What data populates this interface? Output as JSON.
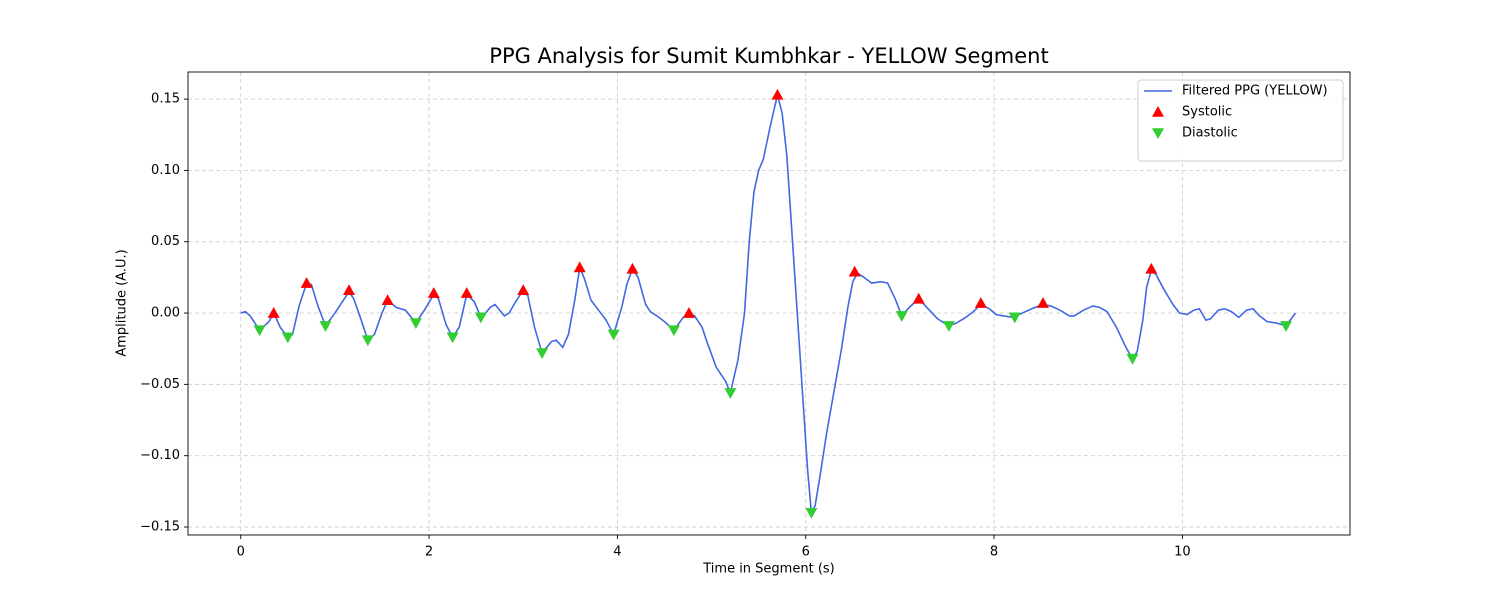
{
  "chart_data": {
    "type": "line",
    "title": "PPG Analysis for Sumit Kumbhkar - YELLOW Segment",
    "xlabel": "Time in Segment (s)",
    "ylabel": "Amplitude (A.U.)",
    "xlim": [
      -0.56,
      11.78
    ],
    "ylim": [
      -0.1556,
      0.169
    ],
    "xticks": [
      0,
      2,
      4,
      6,
      8,
      10
    ],
    "yticks": [
      {
        "value": -0.15,
        "label": "−0.15"
      },
      {
        "value": -0.1,
        "label": "−0.10"
      },
      {
        "value": -0.05,
        "label": "−0.05"
      },
      {
        "value": 0,
        "label": "0.00"
      },
      {
        "value": 0.05,
        "label": "0.05"
      },
      {
        "value": 0.1,
        "label": "0.10"
      },
      {
        "value": 0.15,
        "label": "0.15"
      }
    ],
    "grid": true,
    "legend": "upper right",
    "series": [
      {
        "name": "Filtered PPG (YELLOW)",
        "kind": "line",
        "color": "#4169e1",
        "x": [
          0,
          0.05,
          0.1,
          0.2,
          0.3,
          0.35,
          0.42,
          0.5,
          0.55,
          0.62,
          0.7,
          0.75,
          0.82,
          0.9,
          1.0,
          1.1,
          1.15,
          1.2,
          1.28,
          1.35,
          1.42,
          1.5,
          1.56,
          1.65,
          1.75,
          1.86,
          1.95,
          2.05,
          2.1,
          2.18,
          2.25,
          2.32,
          2.4,
          2.48,
          2.55,
          2.6,
          2.65,
          2.7,
          2.8,
          2.85,
          2.92,
          3.0,
          3.05,
          3.12,
          3.2,
          3.3,
          3.35,
          3.42,
          3.48,
          3.55,
          3.6,
          3.65,
          3.72,
          3.8,
          3.88,
          3.96,
          4.05,
          4.1,
          4.16,
          4.22,
          4.3,
          4.35,
          4.42,
          4.5,
          4.6,
          4.7,
          4.76,
          4.82,
          4.9,
          4.95,
          5.05,
          5.15,
          5.2,
          5.28,
          5.35,
          5.4,
          5.45,
          5.5,
          5.55,
          5.62,
          5.7,
          5.75,
          5.8,
          5.85,
          5.92,
          5.97,
          6.02,
          6.06,
          6.1,
          6.15,
          6.22,
          6.3,
          6.38,
          6.45,
          6.5,
          6.55,
          6.62,
          6.7,
          6.8,
          6.87,
          6.95,
          7.02,
          7.1,
          7.2,
          7.3,
          7.4,
          7.52,
          7.6,
          7.7,
          7.78,
          7.86,
          7.95,
          8.02,
          8.1,
          8.2,
          8.3,
          8.4,
          8.52,
          8.6,
          8.7,
          8.8,
          8.85,
          8.95,
          9.05,
          9.12,
          9.2,
          9.3,
          9.4,
          9.47,
          9.52,
          9.58,
          9.62,
          9.67,
          9.72,
          9.8,
          9.9,
          9.97,
          10.05,
          10.12,
          10.18,
          10.25,
          10.3,
          10.38,
          10.45,
          10.52,
          10.6,
          10.68,
          10.75,
          10.82,
          10.9,
          11.0,
          11.1,
          11.2
        ],
        "values": [
          0,
          0.001,
          -0.002,
          -0.012,
          -0.006,
          0.0,
          -0.01,
          -0.017,
          -0.015,
          0.005,
          0.021,
          0.02,
          0.005,
          -0.009,
          0.0,
          0.01,
          0.015,
          0.01,
          -0.005,
          -0.019,
          -0.015,
          0.0,
          0.009,
          0.004,
          0.002,
          -0.007,
          0.002,
          0.013,
          0.01,
          -0.008,
          -0.017,
          -0.01,
          0.013,
          0.008,
          -0.003,
          0.0,
          0.004,
          0.006,
          -0.002,
          0.0,
          0.008,
          0.016,
          0.012,
          -0.01,
          -0.028,
          -0.02,
          -0.019,
          -0.024,
          -0.015,
          0.01,
          0.032,
          0.024,
          0.009,
          0.002,
          -0.005,
          -0.015,
          0.005,
          0.02,
          0.031,
          0.025,
          0.006,
          0.001,
          -0.002,
          -0.006,
          -0.012,
          -0.003,
          0.0,
          -0.002,
          -0.01,
          -0.02,
          -0.038,
          -0.048,
          -0.056,
          -0.033,
          0.0,
          0.05,
          0.085,
          0.1,
          0.108,
          0.13,
          0.153,
          0.14,
          0.11,
          0.06,
          -0.01,
          -0.06,
          -0.11,
          -0.14,
          -0.135,
          -0.115,
          -0.085,
          -0.055,
          -0.025,
          0.005,
          0.022,
          0.028,
          0.025,
          0.021,
          0.022,
          0.021,
          0.01,
          -0.002,
          0.004,
          0.01,
          0.003,
          -0.004,
          -0.009,
          -0.007,
          -0.003,
          0.001,
          0.006,
          0.003,
          -0.001,
          -0.002,
          -0.003,
          0.0,
          0.003,
          0.006,
          0.005,
          0.002,
          -0.002,
          -0.002,
          0.002,
          0.005,
          0.004,
          0.001,
          -0.01,
          -0.024,
          -0.032,
          -0.027,
          -0.005,
          0.018,
          0.03,
          0.027,
          0.017,
          0.006,
          0.0,
          -0.001,
          0.002,
          0.003,
          -0.005,
          -0.004,
          0.002,
          0.003,
          0.001,
          -0.003,
          0.002,
          0.003,
          -0.002,
          -0.006,
          -0.007,
          -0.009,
          0.0
        ]
      },
      {
        "name": "Systolic",
        "kind": "scatter",
        "marker": "triangle-up",
        "color": "#ff0000",
        "x": [
          0.35,
          0.7,
          1.15,
          1.56,
          2.05,
          2.4,
          3.0,
          3.6,
          4.16,
          4.76,
          5.7,
          6.52,
          7.2,
          7.86,
          8.52,
          9.67
        ],
        "values": [
          0.0,
          0.021,
          0.016,
          0.009,
          0.014,
          0.014,
          0.016,
          0.032,
          0.031,
          0.0,
          0.153,
          0.029,
          0.01,
          0.007,
          0.007,
          0.031
        ]
      },
      {
        "name": "Diastolic",
        "kind": "scatter",
        "marker": "triangle-down",
        "color": "#32cd32",
        "x": [
          0.2,
          0.5,
          0.9,
          1.35,
          1.86,
          2.25,
          2.55,
          3.2,
          3.96,
          4.6,
          5.2,
          6.06,
          7.02,
          7.52,
          8.22,
          9.47,
          11.1
        ],
        "values": [
          -0.012,
          -0.017,
          -0.009,
          -0.019,
          -0.007,
          -0.017,
          -0.003,
          -0.028,
          -0.015,
          -0.012,
          -0.056,
          -0.14,
          -0.002,
          -0.009,
          -0.003,
          -0.032,
          -0.009
        ]
      }
    ]
  }
}
